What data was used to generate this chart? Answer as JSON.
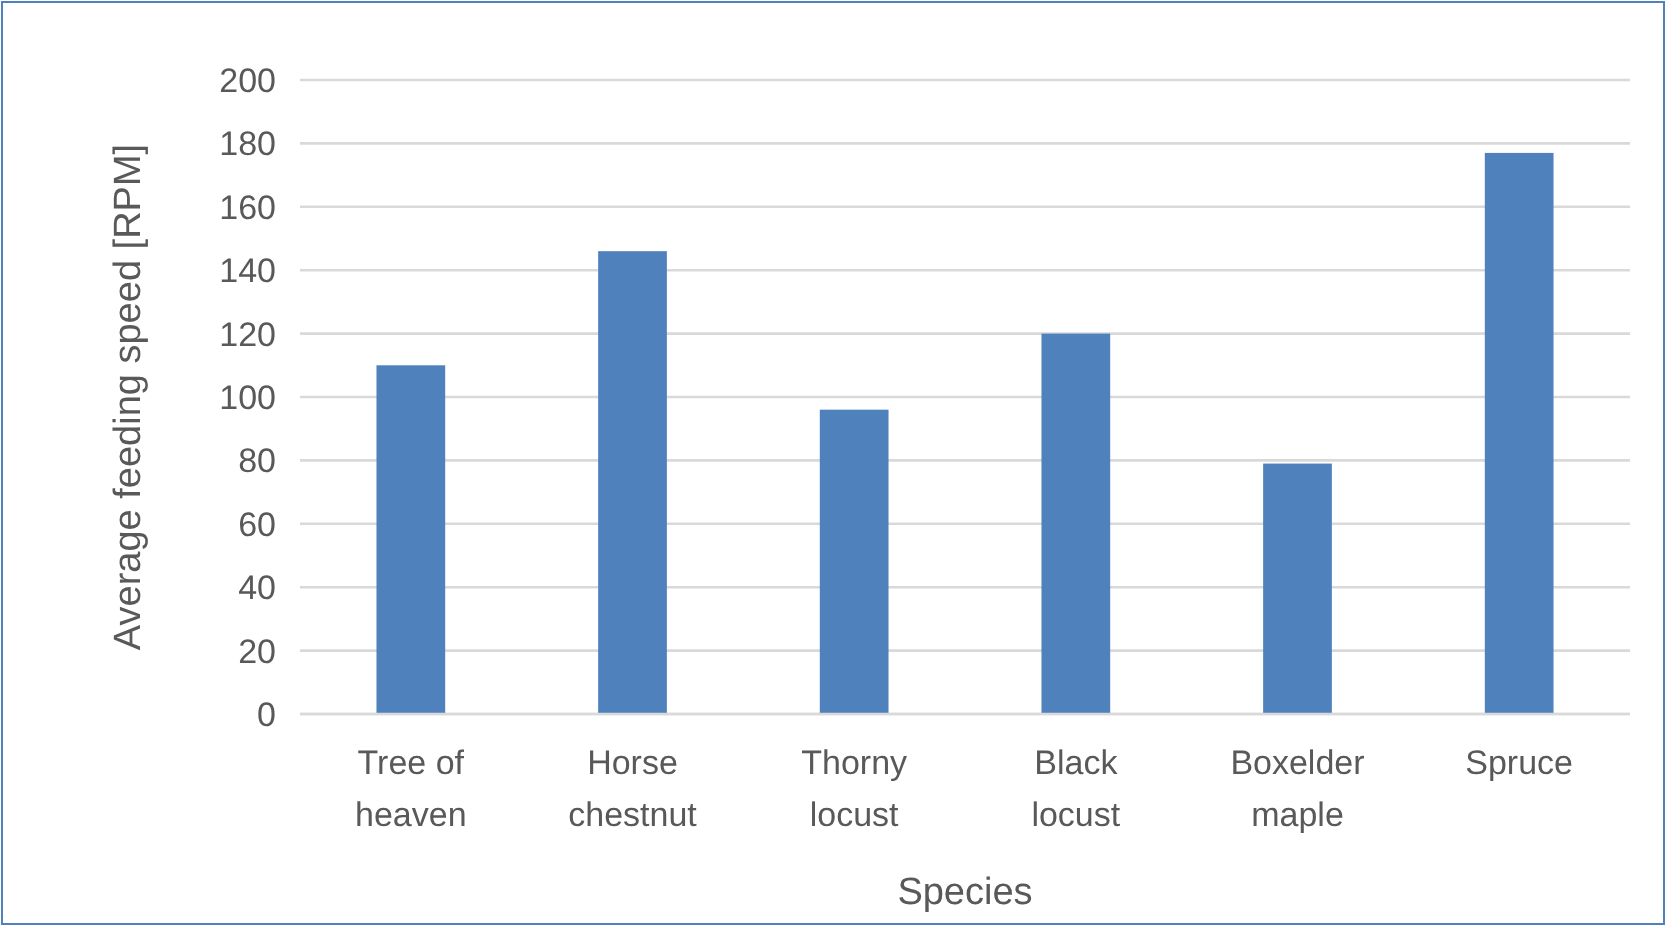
{
  "chart_data": {
    "type": "bar",
    "xlabel": "Species",
    "ylabel": "Average feeding speed [RPM]",
    "categories": [
      "Tree of heaven",
      "Horse chestnut",
      "Thorny locust",
      "Black locust",
      "Boxelder maple",
      "Spruce"
    ],
    "values": [
      110,
      146,
      96,
      120,
      79,
      177
    ],
    "color": "#4f81bd",
    "ylim": [
      0,
      200
    ],
    "yticks": [
      0,
      20,
      40,
      60,
      80,
      100,
      120,
      140,
      160,
      180,
      200
    ],
    "grid": "y"
  }
}
